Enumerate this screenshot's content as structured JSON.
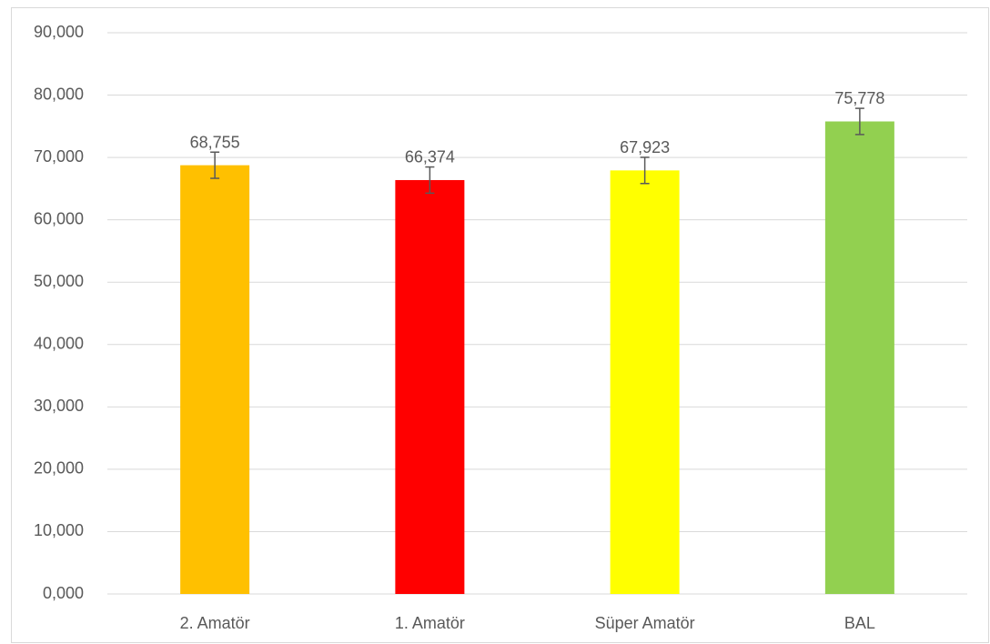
{
  "chart_data": {
    "type": "bar",
    "categories": [
      "2. Amatör",
      "1. Amatör",
      "Süper Amatör",
      "BAL"
    ],
    "values": [
      68.755,
      66.374,
      67.923,
      75.778
    ],
    "value_labels": [
      "68,755",
      "66,374",
      "67,923",
      "75,778"
    ],
    "errors": [
      2.1,
      2.1,
      2.1,
      2.1
    ],
    "colors": [
      "#ffc000",
      "#ff0000",
      "#ffff00",
      "#92d050"
    ],
    "ylim": [
      0,
      90
    ],
    "yticks": [
      {
        "value": 0,
        "label": "0,000"
      },
      {
        "value": 10,
        "label": "10,000"
      },
      {
        "value": 20,
        "label": "20,000"
      },
      {
        "value": 30,
        "label": "30,000"
      },
      {
        "value": 40,
        "label": "40,000"
      },
      {
        "value": 50,
        "label": "50,000"
      },
      {
        "value": 60,
        "label": "60,000"
      },
      {
        "value": 70,
        "label": "70,000"
      },
      {
        "value": 80,
        "label": "80,000"
      },
      {
        "value": 90,
        "label": "90,000"
      }
    ],
    "grid": true
  }
}
